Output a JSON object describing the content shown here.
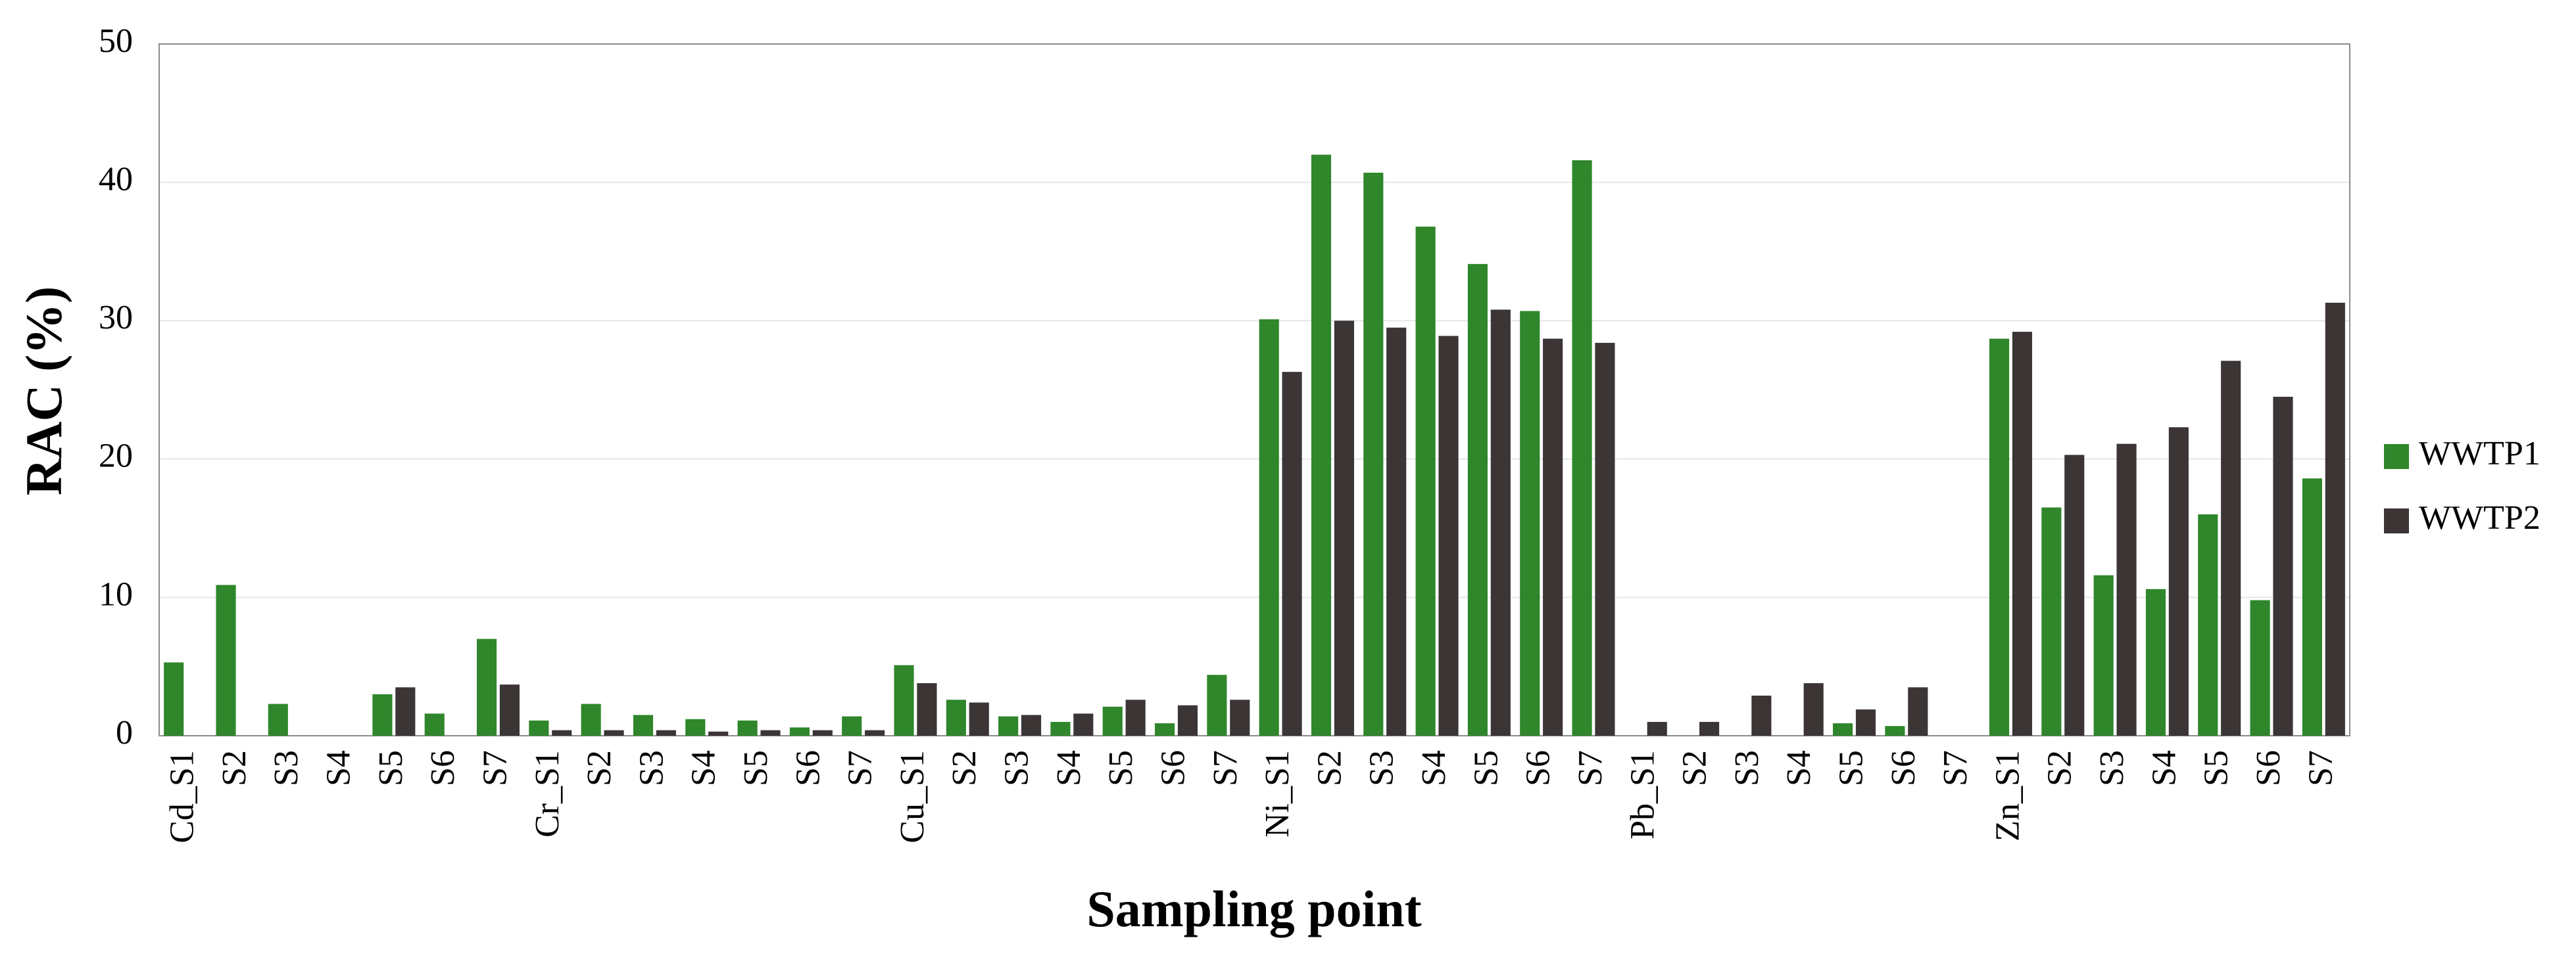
{
  "chart_data": {
    "type": "bar",
    "y_label": "RAC (%)",
    "x_label": "Sampling point",
    "categories": [
      "Cd_S1",
      "S2",
      "S3",
      "S4",
      "S5",
      "S6",
      "S7",
      "Cr_S1",
      "S2",
      "S3",
      "S4",
      "S5",
      "S6",
      "S7",
      "Cu_S1",
      "S2",
      "S3",
      "S4",
      "S5",
      "S6",
      "S7",
      "Ni_S1",
      "S2",
      "S3",
      "S4",
      "S5",
      "S6",
      "S7",
      "Pb_S1",
      "S2",
      "S3",
      "S4",
      "S5",
      "S6",
      "S7",
      "Zn_S1",
      "S2",
      "S3",
      "S4",
      "S5",
      "S6",
      "S7"
    ],
    "series": [
      {
        "name": "WWTP1",
        "color": "#2f862b",
        "values": [
          5.3,
          10.9,
          2.3,
          0,
          3.0,
          1.6,
          7.0,
          1.1,
          2.3,
          1.5,
          1.2,
          1.1,
          0.6,
          1.4,
          5.1,
          2.6,
          1.4,
          1.0,
          2.1,
          0.9,
          4.4,
          30.1,
          42.0,
          40.7,
          36.8,
          34.1,
          30.7,
          41.6,
          0,
          0,
          0,
          0,
          0.9,
          0.7,
          0,
          28.7,
          16.5,
          11.6,
          10.6,
          16.0,
          9.8,
          18.6
        ]
      },
      {
        "name": "WWTP2",
        "color": "#3b3536",
        "values": [
          0,
          0,
          0,
          0,
          3.5,
          0,
          3.7,
          0.4,
          0.4,
          0.4,
          0.3,
          0.4,
          0.4,
          0.4,
          3.8,
          2.4,
          1.5,
          1.6,
          2.6,
          2.2,
          2.6,
          26.3,
          30.0,
          29.5,
          28.9,
          30.8,
          28.7,
          28.4,
          1.0,
          1.0,
          2.9,
          3.8,
          1.9,
          3.5,
          0,
          29.2,
          20.3,
          21.1,
          22.3,
          27.1,
          24.5,
          31.3
        ]
      }
    ],
    "ylim": [
      0,
      50
    ],
    "yticks": [
      0,
      10,
      20,
      30,
      40,
      50
    ],
    "grid": true,
    "legend": "right"
  }
}
